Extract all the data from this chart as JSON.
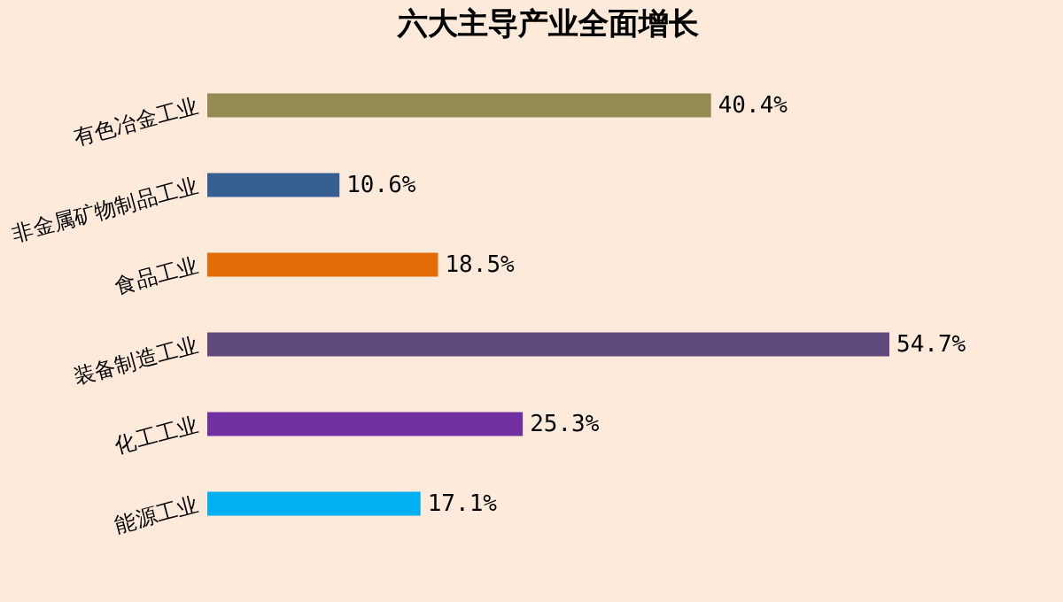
{
  "chart_data": {
    "type": "bar",
    "orientation": "horizontal",
    "relative": false,
    "title": "六大主导产业全面增长",
    "categories": [
      "有色冶金工业",
      "非金属矿物制品工业",
      "食品工业",
      "装备制造工业",
      "化工工业",
      "能源工业"
    ],
    "values": [
      40.4,
      10.6,
      18.5,
      54.7,
      25.3,
      17.1
    ],
    "colors": [
      "#948a54",
      "#376092",
      "#e36c09",
      "#604a7b",
      "#7030a0",
      "#00b0f0"
    ],
    "value_labels": [
      "40.4%",
      "10.6%",
      "18.5%",
      "54.7%",
      "25.3%",
      "17.1%"
    ]
  }
}
